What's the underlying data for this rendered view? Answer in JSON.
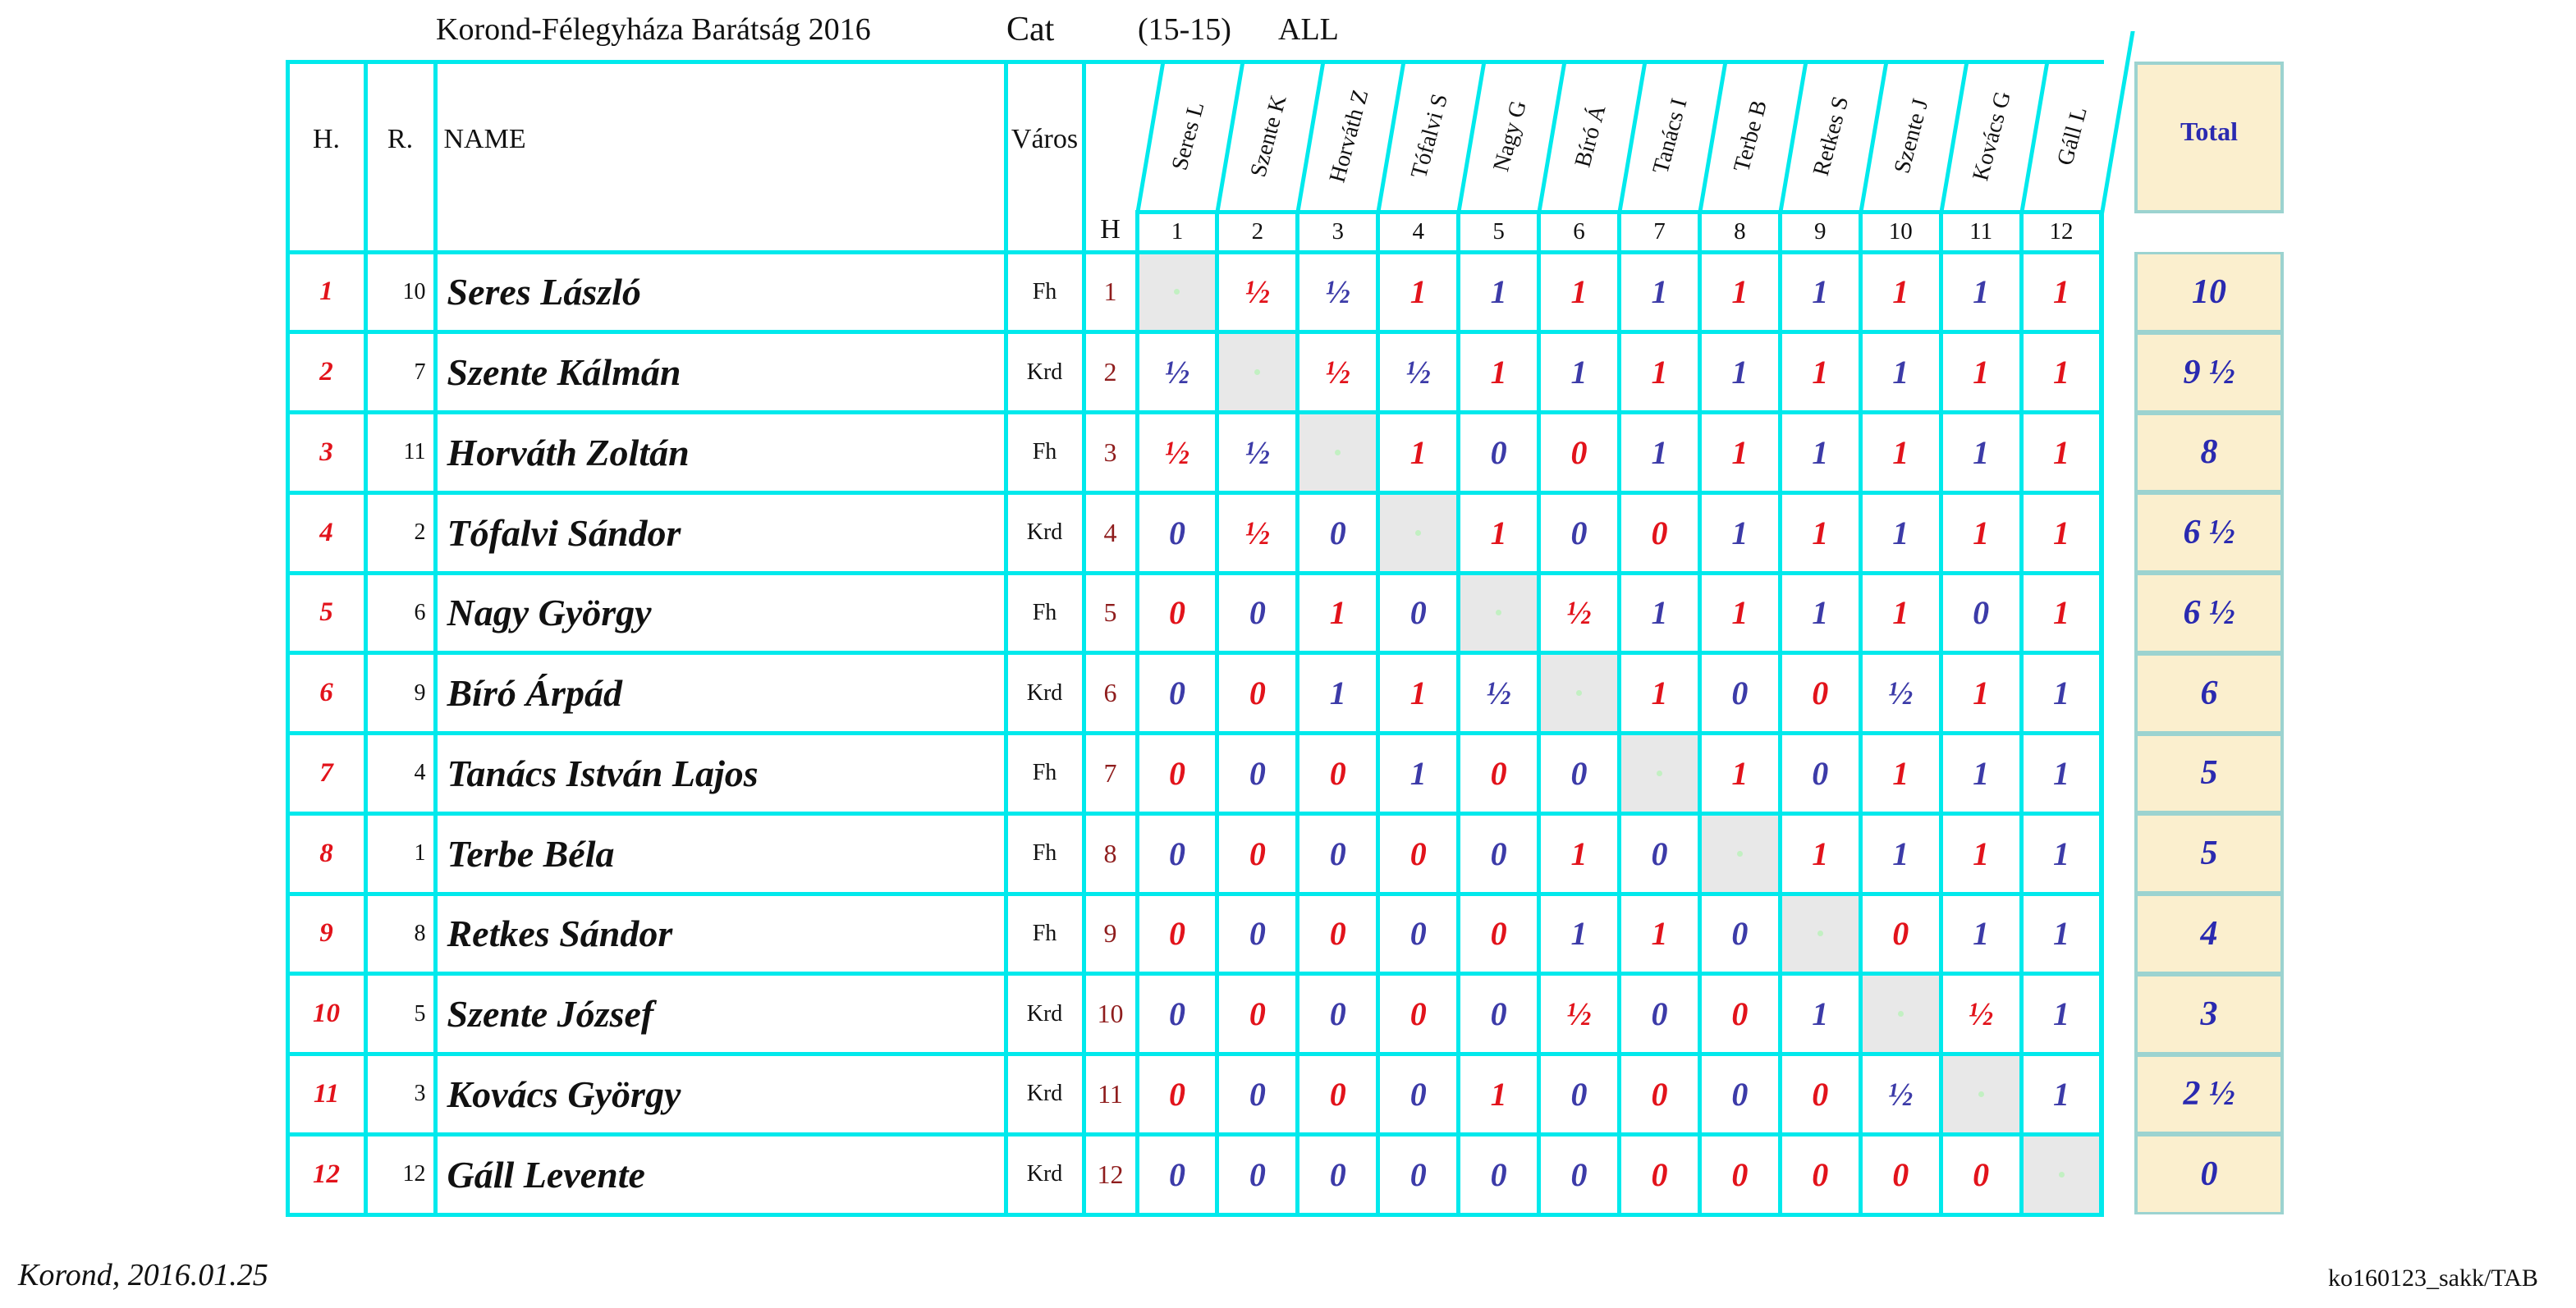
{
  "page": {
    "title": "Korond-Félegyháza Barátság 2016",
    "cat_label": "Cat",
    "cat_value": "(15-15)",
    "cat_scope": "ALL",
    "footer_left": "Korond, 2016.01.25",
    "footer_right": "ko160123_sakk/TAB"
  },
  "colors": {
    "grid": "#00e9ec",
    "red": "#e2131b",
    "blue": "#3c3ba8",
    "dark_red": "#8f1d1d",
    "total_bg": "#fbefce",
    "total_border": "#9cd3d0",
    "total_text": "#2a2ab0",
    "diag_bg": "#e8e8e8",
    "diag_dot": "#c2f0c2",
    "text": "#111111"
  },
  "table": {
    "headers": {
      "place": "H.",
      "start_no": "R.",
      "name": "NAME",
      "city": "Város",
      "row_no": "H",
      "total": "Total"
    },
    "opponents": [
      "Seres L",
      "Szente K",
      "Horváth Z",
      "Tófalvi S",
      "Nagy G",
      "Bíró Á",
      "Tanács I",
      "Terbe B",
      "Retkes S",
      "Szente J",
      "Kovács G",
      "Gáll L"
    ],
    "round_numbers": [
      "1",
      "2",
      "3",
      "4",
      "5",
      "6",
      "7",
      "8",
      "9",
      "10",
      "11",
      "12"
    ],
    "rows": [
      {
        "place": "1",
        "start_no": "10",
        "name": "Seres László",
        "city": "Fh",
        "row_no": "1",
        "total": "10",
        "results": [
          {
            "c": "diag"
          },
          {
            "v": "½",
            "c": "red"
          },
          {
            "v": "½",
            "c": "blue"
          },
          {
            "v": "1",
            "c": "red"
          },
          {
            "v": "1",
            "c": "blue"
          },
          {
            "v": "1",
            "c": "red"
          },
          {
            "v": "1",
            "c": "blue"
          },
          {
            "v": "1",
            "c": "red"
          },
          {
            "v": "1",
            "c": "blue"
          },
          {
            "v": "1",
            "c": "red"
          },
          {
            "v": "1",
            "c": "blue"
          },
          {
            "v": "1",
            "c": "red"
          }
        ]
      },
      {
        "place": "2",
        "start_no": "7",
        "name": "Szente Kálmán",
        "city": "Krd",
        "row_no": "2",
        "total": "9 ½",
        "results": [
          {
            "v": "½",
            "c": "blue"
          },
          {
            "c": "diag"
          },
          {
            "v": "½",
            "c": "red"
          },
          {
            "v": "½",
            "c": "blue"
          },
          {
            "v": "1",
            "c": "red"
          },
          {
            "v": "1",
            "c": "blue"
          },
          {
            "v": "1",
            "c": "red"
          },
          {
            "v": "1",
            "c": "blue"
          },
          {
            "v": "1",
            "c": "red"
          },
          {
            "v": "1",
            "c": "blue"
          },
          {
            "v": "1",
            "c": "red"
          },
          {
            "v": "1",
            "c": "red"
          }
        ]
      },
      {
        "place": "3",
        "start_no": "11",
        "name": "Horváth Zoltán",
        "city": "Fh",
        "row_no": "3",
        "total": "8",
        "results": [
          {
            "v": "½",
            "c": "red"
          },
          {
            "v": "½",
            "c": "blue"
          },
          {
            "c": "diag"
          },
          {
            "v": "1",
            "c": "red"
          },
          {
            "v": "0",
            "c": "blue"
          },
          {
            "v": "0",
            "c": "red"
          },
          {
            "v": "1",
            "c": "blue"
          },
          {
            "v": "1",
            "c": "red"
          },
          {
            "v": "1",
            "c": "blue"
          },
          {
            "v": "1",
            "c": "red"
          },
          {
            "v": "1",
            "c": "blue"
          },
          {
            "v": "1",
            "c": "red"
          }
        ]
      },
      {
        "place": "4",
        "start_no": "2",
        "name": "Tófalvi Sándor",
        "city": "Krd",
        "row_no": "4",
        "total": "6 ½",
        "results": [
          {
            "v": "0",
            "c": "blue"
          },
          {
            "v": "½",
            "c": "red"
          },
          {
            "v": "0",
            "c": "blue"
          },
          {
            "c": "diag"
          },
          {
            "v": "1",
            "c": "red"
          },
          {
            "v": "0",
            "c": "blue"
          },
          {
            "v": "0",
            "c": "red"
          },
          {
            "v": "1",
            "c": "blue"
          },
          {
            "v": "1",
            "c": "red"
          },
          {
            "v": "1",
            "c": "blue"
          },
          {
            "v": "1",
            "c": "red"
          },
          {
            "v": "1",
            "c": "red"
          }
        ]
      },
      {
        "place": "5",
        "start_no": "6",
        "name": "Nagy György",
        "city": "Fh",
        "row_no": "5",
        "total": "6 ½",
        "results": [
          {
            "v": "0",
            "c": "red"
          },
          {
            "v": "0",
            "c": "blue"
          },
          {
            "v": "1",
            "c": "red"
          },
          {
            "v": "0",
            "c": "blue"
          },
          {
            "c": "diag"
          },
          {
            "v": "½",
            "c": "red"
          },
          {
            "v": "1",
            "c": "blue"
          },
          {
            "v": "1",
            "c": "red"
          },
          {
            "v": "1",
            "c": "blue"
          },
          {
            "v": "1",
            "c": "red"
          },
          {
            "v": "0",
            "c": "blue"
          },
          {
            "v": "1",
            "c": "red"
          }
        ]
      },
      {
        "place": "6",
        "start_no": "9",
        "name": "Bíró Árpád",
        "city": "Krd",
        "row_no": "6",
        "total": "6",
        "results": [
          {
            "v": "0",
            "c": "blue"
          },
          {
            "v": "0",
            "c": "red"
          },
          {
            "v": "1",
            "c": "blue"
          },
          {
            "v": "1",
            "c": "red"
          },
          {
            "v": "½",
            "c": "blue"
          },
          {
            "c": "diag"
          },
          {
            "v": "1",
            "c": "red"
          },
          {
            "v": "0",
            "c": "blue"
          },
          {
            "v": "0",
            "c": "red"
          },
          {
            "v": "½",
            "c": "blue"
          },
          {
            "v": "1",
            "c": "red"
          },
          {
            "v": "1",
            "c": "blue"
          }
        ]
      },
      {
        "place": "7",
        "start_no": "4",
        "name": "Tanács István Lajos",
        "city": "Fh",
        "row_no": "7",
        "total": "5",
        "results": [
          {
            "v": "0",
            "c": "red"
          },
          {
            "v": "0",
            "c": "blue"
          },
          {
            "v": "0",
            "c": "red"
          },
          {
            "v": "1",
            "c": "blue"
          },
          {
            "v": "0",
            "c": "red"
          },
          {
            "v": "0",
            "c": "blue"
          },
          {
            "c": "diag"
          },
          {
            "v": "1",
            "c": "red"
          },
          {
            "v": "0",
            "c": "blue"
          },
          {
            "v": "1",
            "c": "red"
          },
          {
            "v": "1",
            "c": "blue"
          },
          {
            "v": "1",
            "c": "blue"
          }
        ]
      },
      {
        "place": "8",
        "start_no": "1",
        "name": "Terbe Béla",
        "city": "Fh",
        "row_no": "8",
        "total": "5",
        "results": [
          {
            "v": "0",
            "c": "blue"
          },
          {
            "v": "0",
            "c": "red"
          },
          {
            "v": "0",
            "c": "blue"
          },
          {
            "v": "0",
            "c": "red"
          },
          {
            "v": "0",
            "c": "blue"
          },
          {
            "v": "1",
            "c": "red"
          },
          {
            "v": "0",
            "c": "blue"
          },
          {
            "c": "diag"
          },
          {
            "v": "1",
            "c": "red"
          },
          {
            "v": "1",
            "c": "blue"
          },
          {
            "v": "1",
            "c": "red"
          },
          {
            "v": "1",
            "c": "blue"
          }
        ]
      },
      {
        "place": "9",
        "start_no": "8",
        "name": "Retkes Sándor",
        "city": "Fh",
        "row_no": "9",
        "total": "4",
        "results": [
          {
            "v": "0",
            "c": "red"
          },
          {
            "v": "0",
            "c": "blue"
          },
          {
            "v": "0",
            "c": "red"
          },
          {
            "v": "0",
            "c": "blue"
          },
          {
            "v": "0",
            "c": "red"
          },
          {
            "v": "1",
            "c": "blue"
          },
          {
            "v": "1",
            "c": "red"
          },
          {
            "v": "0",
            "c": "blue"
          },
          {
            "c": "diag"
          },
          {
            "v": "0",
            "c": "red"
          },
          {
            "v": "1",
            "c": "blue"
          },
          {
            "v": "1",
            "c": "blue"
          }
        ]
      },
      {
        "place": "10",
        "start_no": "5",
        "name": "Szente József",
        "city": "Krd",
        "row_no": "10",
        "total": "3",
        "results": [
          {
            "v": "0",
            "c": "blue"
          },
          {
            "v": "0",
            "c": "red"
          },
          {
            "v": "0",
            "c": "blue"
          },
          {
            "v": "0",
            "c": "red"
          },
          {
            "v": "0",
            "c": "blue"
          },
          {
            "v": "½",
            "c": "red"
          },
          {
            "v": "0",
            "c": "blue"
          },
          {
            "v": "0",
            "c": "red"
          },
          {
            "v": "1",
            "c": "blue"
          },
          {
            "c": "diag"
          },
          {
            "v": "½",
            "c": "red"
          },
          {
            "v": "1",
            "c": "blue"
          }
        ]
      },
      {
        "place": "11",
        "start_no": "3",
        "name": "Kovács György",
        "city": "Krd",
        "row_no": "11",
        "total": "2 ½",
        "results": [
          {
            "v": "0",
            "c": "red"
          },
          {
            "v": "0",
            "c": "blue"
          },
          {
            "v": "0",
            "c": "red"
          },
          {
            "v": "0",
            "c": "blue"
          },
          {
            "v": "1",
            "c": "red"
          },
          {
            "v": "0",
            "c": "blue"
          },
          {
            "v": "0",
            "c": "red"
          },
          {
            "v": "0",
            "c": "blue"
          },
          {
            "v": "0",
            "c": "red"
          },
          {
            "v": "½",
            "c": "blue"
          },
          {
            "c": "diag"
          },
          {
            "v": "1",
            "c": "blue"
          }
        ]
      },
      {
        "place": "12",
        "start_no": "12",
        "name": "Gáll Levente",
        "city": "Krd",
        "row_no": "12",
        "total": "0",
        "results": [
          {
            "v": "0",
            "c": "blue"
          },
          {
            "v": "0",
            "c": "blue"
          },
          {
            "v": "0",
            "c": "blue"
          },
          {
            "v": "0",
            "c": "blue"
          },
          {
            "v": "0",
            "c": "blue"
          },
          {
            "v": "0",
            "c": "blue"
          },
          {
            "v": "0",
            "c": "red"
          },
          {
            "v": "0",
            "c": "red"
          },
          {
            "v": "0",
            "c": "red"
          },
          {
            "v": "0",
            "c": "red"
          },
          {
            "v": "0",
            "c": "red"
          },
          {
            "c": "diag"
          }
        ]
      }
    ]
  }
}
